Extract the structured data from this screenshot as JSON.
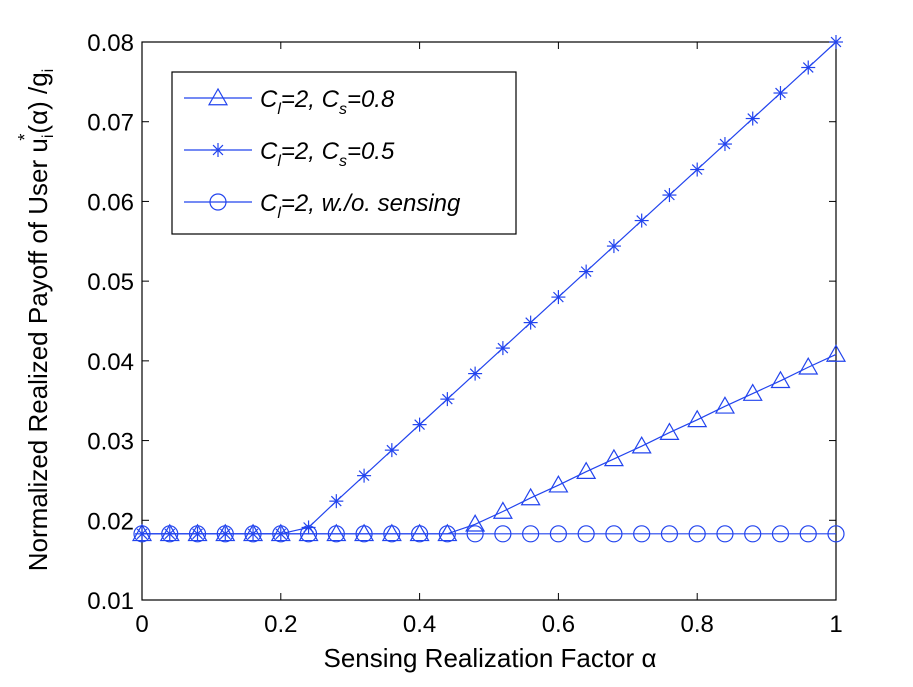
{
  "chart_data": {
    "type": "line",
    "xlabel": "Sensing Realization Factor α",
    "ylabel": "Normalized Realized Payoff of User  u",
    "ylabel_sub": "i",
    "ylabel_sup": "*",
    "ylabel_tail": "(α) /g",
    "ylabel_tail_sub": "i",
    "xlim": [
      0,
      1
    ],
    "ylim": [
      0.01,
      0.08
    ],
    "xticks": [
      "0",
      "0.2",
      "0.4",
      "0.6",
      "0.8",
      "1"
    ],
    "yticks": [
      "0.01",
      "0.02",
      "0.03",
      "0.04",
      "0.05",
      "0.06",
      "0.07",
      "0.08"
    ],
    "x": [
      0,
      0.04,
      0.08,
      0.12,
      0.16,
      0.2,
      0.24,
      0.28,
      0.32,
      0.36,
      0.4,
      0.44,
      0.48,
      0.52,
      0.56,
      0.6,
      0.64,
      0.68,
      0.72,
      0.76,
      0.8,
      0.84,
      0.88,
      0.92,
      0.96,
      1
    ],
    "series": [
      {
        "name": "triangle",
        "marker": "triangle",
        "legend": {
          "main": "C",
          "sub1": "l",
          "mid": "=2, C",
          "sub2": "s",
          "tail": "=0.8"
        },
        "values": [
          0.0183,
          0.0183,
          0.0183,
          0.0183,
          0.0183,
          0.0183,
          0.0183,
          0.0183,
          0.0183,
          0.0183,
          0.0183,
          0.0183,
          0.0195,
          0.0211,
          0.0228,
          0.0244,
          0.0261,
          0.0277,
          0.0293,
          0.031,
          0.0326,
          0.0343,
          0.0359,
          0.0375,
          0.0392,
          0.0408
        ]
      },
      {
        "name": "star",
        "marker": "star",
        "legend": {
          "main": "C",
          "sub1": "l",
          "mid": "=2, C",
          "sub2": "s",
          "tail": "=0.5"
        },
        "values": [
          0.0183,
          0.0183,
          0.0183,
          0.0183,
          0.0183,
          0.0183,
          0.0191,
          0.0224,
          0.0256,
          0.0288,
          0.032,
          0.0352,
          0.0384,
          0.0416,
          0.0448,
          0.048,
          0.0512,
          0.0544,
          0.0576,
          0.0608,
          0.064,
          0.0672,
          0.0704,
          0.0736,
          0.0768,
          0.08
        ]
      },
      {
        "name": "circle",
        "marker": "circle",
        "legend": {
          "main": "C",
          "sub1": "l",
          "mid": "=2, w./o. sensing",
          "sub2": "",
          "tail": ""
        },
        "values": [
          0.0183,
          0.0183,
          0.0183,
          0.0183,
          0.0183,
          0.0183,
          0.0183,
          0.0183,
          0.0183,
          0.0183,
          0.0183,
          0.0183,
          0.0183,
          0.0183,
          0.0183,
          0.0183,
          0.0183,
          0.0183,
          0.0183,
          0.0183,
          0.0183,
          0.0183,
          0.0183,
          0.0183,
          0.0183,
          0.0183
        ]
      }
    ],
    "grid": false,
    "legend_position": "top-left"
  }
}
